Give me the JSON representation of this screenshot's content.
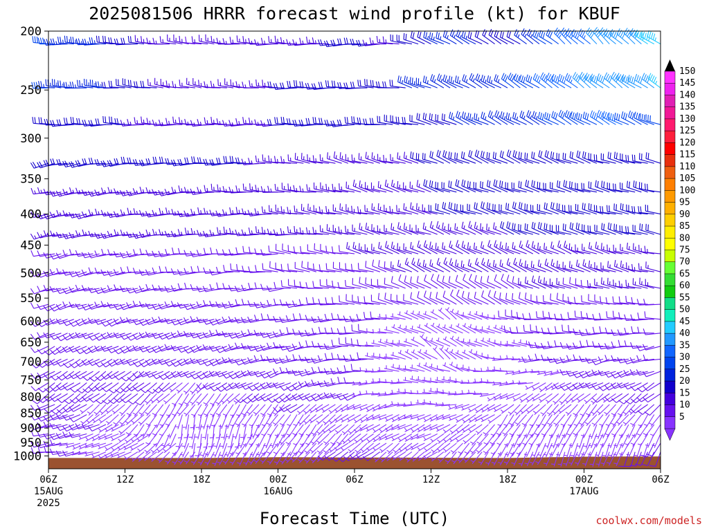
{
  "chart_data": {
    "type": "wind-barb-profile",
    "title": "2025081506 HRRR forecast wind profile (kt) for KBUF",
    "xlabel": "Forecast Time (UTC)",
    "ylabel": "",
    "y_scale": "log",
    "ylim": [
      1050,
      200
    ],
    "y_ticks": [
      200,
      250,
      300,
      350,
      400,
      450,
      500,
      550,
      600,
      650,
      700,
      750,
      800,
      850,
      900,
      950,
      1000
    ],
    "xlim_hours": [
      0,
      48
    ],
    "x_ticks": [
      {
        "hour": 0,
        "line1": "06Z",
        "line2": "15AUG",
        "line3": "2025"
      },
      {
        "hour": 6,
        "line1": "12Z",
        "line2": "",
        "line3": ""
      },
      {
        "hour": 12,
        "line1": "18Z",
        "line2": "",
        "line3": ""
      },
      {
        "hour": 18,
        "line1": "00Z",
        "line2": "16AUG",
        "line3": ""
      },
      {
        "hour": 24,
        "line1": "06Z",
        "line2": "",
        "line3": ""
      },
      {
        "hour": 30,
        "line1": "12Z",
        "line2": "",
        "line3": ""
      },
      {
        "hour": 36,
        "line1": "18Z",
        "line2": "",
        "line3": ""
      },
      {
        "hour": 42,
        "line1": "00Z",
        "line2": "17AUG",
        "line3": ""
      },
      {
        "hour": 48,
        "line1": "06Z",
        "line2": "",
        "line3": ""
      }
    ],
    "levels_hpa": [
      210,
      248,
      285,
      330,
      368,
      400,
      432,
      465,
      498,
      530,
      563,
      596,
      628,
      660,
      693,
      726,
      758,
      790,
      823,
      855,
      888,
      920,
      953,
      985
    ],
    "wind_points": [
      {
        "hour": 0,
        "level": 210,
        "speed": 30,
        "dir": 270
      },
      {
        "hour": 12,
        "level": 210,
        "speed": 10,
        "dir": 285
      },
      {
        "hour": 24,
        "level": 210,
        "speed": 20,
        "dir": 260
      },
      {
        "hour": 36,
        "level": 210,
        "speed": 15,
        "dir": 300
      },
      {
        "hour": 44,
        "level": 210,
        "speed": 40,
        "dir": 320
      },
      {
        "hour": 48,
        "level": 210,
        "speed": 50,
        "dir": 300
      },
      {
        "hour": 0,
        "level": 250,
        "speed": 30,
        "dir": 275
      },
      {
        "hour": 12,
        "level": 250,
        "speed": 15,
        "dir": 280
      },
      {
        "hour": 24,
        "level": 250,
        "speed": 20,
        "dir": 270
      },
      {
        "hour": 36,
        "level": 250,
        "speed": 25,
        "dir": 300
      },
      {
        "hour": 44,
        "level": 250,
        "speed": 40,
        "dir": 310
      },
      {
        "hour": 48,
        "level": 250,
        "speed": 45,
        "dir": 300
      },
      {
        "hour": 0,
        "level": 285,
        "speed": 20,
        "dir": 270
      },
      {
        "hour": 12,
        "level": 285,
        "speed": 15,
        "dir": 270
      },
      {
        "hour": 24,
        "level": 285,
        "speed": 20,
        "dir": 265
      },
      {
        "hour": 36,
        "level": 285,
        "speed": 25,
        "dir": 300
      },
      {
        "hour": 48,
        "level": 285,
        "speed": 30,
        "dir": 290
      },
      {
        "hour": 0,
        "level": 330,
        "speed": 20,
        "dir": 255
      },
      {
        "hour": 12,
        "level": 330,
        "speed": 20,
        "dir": 265
      },
      {
        "hour": 24,
        "level": 330,
        "speed": 15,
        "dir": 290
      },
      {
        "hour": 36,
        "level": 330,
        "speed": 20,
        "dir": 295
      },
      {
        "hour": 48,
        "level": 330,
        "speed": 20,
        "dir": 280
      },
      {
        "hour": 0,
        "level": 400,
        "speed": 15,
        "dir": 255
      },
      {
        "hour": 12,
        "level": 400,
        "speed": 15,
        "dir": 265
      },
      {
        "hour": 24,
        "level": 400,
        "speed": 15,
        "dir": 280
      },
      {
        "hour": 36,
        "level": 400,
        "speed": 20,
        "dir": 290
      },
      {
        "hour": 48,
        "level": 400,
        "speed": 20,
        "dir": 280
      },
      {
        "hour": 0,
        "level": 500,
        "speed": 10,
        "dir": 255
      },
      {
        "hour": 12,
        "level": 500,
        "speed": 10,
        "dir": 265
      },
      {
        "hour": 24,
        "level": 500,
        "speed": 10,
        "dir": 270
      },
      {
        "hour": 30,
        "level": 500,
        "speed": 15,
        "dir": 300
      },
      {
        "hour": 36,
        "level": 500,
        "speed": 15,
        "dir": 300
      },
      {
        "hour": 48,
        "level": 500,
        "speed": 15,
        "dir": 280
      },
      {
        "hour": 0,
        "level": 600,
        "speed": 10,
        "dir": 245
      },
      {
        "hour": 12,
        "level": 600,
        "speed": 10,
        "dir": 255
      },
      {
        "hour": 24,
        "level": 600,
        "speed": 10,
        "dir": 260
      },
      {
        "hour": 32,
        "level": 600,
        "speed": 5,
        "dir": 330
      },
      {
        "hour": 40,
        "level": 600,
        "speed": 10,
        "dir": 270
      },
      {
        "hour": 48,
        "level": 600,
        "speed": 10,
        "dir": 270
      },
      {
        "hour": 0,
        "level": 700,
        "speed": 10,
        "dir": 240
      },
      {
        "hour": 12,
        "level": 700,
        "speed": 10,
        "dir": 245
      },
      {
        "hour": 20,
        "level": 700,
        "speed": 15,
        "dir": 260
      },
      {
        "hour": 30,
        "level": 700,
        "speed": 5,
        "dir": 340
      },
      {
        "hour": 40,
        "level": 700,
        "speed": 10,
        "dir": 260
      },
      {
        "hour": 48,
        "level": 700,
        "speed": 10,
        "dir": 260
      },
      {
        "hour": 0,
        "level": 800,
        "speed": 10,
        "dir": 230
      },
      {
        "hour": 12,
        "level": 800,
        "speed": 5,
        "dir": 200
      },
      {
        "hour": 20,
        "level": 800,
        "speed": 10,
        "dir": 240
      },
      {
        "hour": 30,
        "level": 800,
        "speed": 5,
        "dir": 280
      },
      {
        "hour": 40,
        "level": 800,
        "speed": 5,
        "dir": 220
      },
      {
        "hour": 48,
        "level": 800,
        "speed": 10,
        "dir": 230
      },
      {
        "hour": 0,
        "level": 900,
        "speed": 10,
        "dir": 260
      },
      {
        "hour": 12,
        "level": 900,
        "speed": 5,
        "dir": 180
      },
      {
        "hour": 20,
        "level": 900,
        "speed": 5,
        "dir": 200
      },
      {
        "hour": 30,
        "level": 900,
        "speed": 5,
        "dir": 250
      },
      {
        "hour": 40,
        "level": 900,
        "speed": 5,
        "dir": 200
      },
      {
        "hour": 48,
        "level": 900,
        "speed": 5,
        "dir": 210
      },
      {
        "hour": 0,
        "level": 985,
        "speed": 10,
        "dir": 270
      },
      {
        "hour": 12,
        "level": 985,
        "speed": 5,
        "dir": 200
      },
      {
        "hour": 24,
        "level": 985,
        "speed": 10,
        "dir": 240
      },
      {
        "hour": 36,
        "level": 985,
        "speed": 5,
        "dir": 200
      },
      {
        "hour": 48,
        "level": 985,
        "speed": 10,
        "dir": 200
      }
    ],
    "surface_pressure": [
      {
        "hour": 0,
        "level": 1008
      },
      {
        "hour": 12,
        "level": 1008
      },
      {
        "hour": 18,
        "level": 1005
      },
      {
        "hour": 36,
        "level": 1008
      },
      {
        "hour": 42,
        "level": 1003
      },
      {
        "hour": 48,
        "level": 1002
      }
    ],
    "surface_color": "#9b5230",
    "colorbar": {
      "labels": [
        "150",
        "145",
        "140",
        "135",
        "130",
        "125",
        "120",
        "115",
        "110",
        "105",
        "100",
        "95",
        "90",
        "85",
        "80",
        "75",
        "70",
        "65",
        "60",
        "55",
        "50",
        "45",
        "40",
        "35",
        "30",
        "25",
        "20",
        "15",
        "10",
        "5"
      ],
      "colors": [
        "#ff33ff",
        "#ee22ee",
        "#e01fb4",
        "#f01896",
        "#ff1a6e",
        "#ff1f3c",
        "#ff0000",
        "#e8300e",
        "#ef5f10",
        "#ff7f00",
        "#ff9a00",
        "#ffb000",
        "#ffcf00",
        "#ffee00",
        "#ffff00",
        "#c8ff00",
        "#66ff33",
        "#33dd33",
        "#11cc11",
        "#11dd88",
        "#11eebb",
        "#22ccff",
        "#2299ff",
        "#1166ff",
        "#0044ee",
        "#0022dd",
        "#1100cc",
        "#4400dd",
        "#6611ee",
        "#8833ff"
      ]
    }
  },
  "credit": "coolwx.com/models"
}
